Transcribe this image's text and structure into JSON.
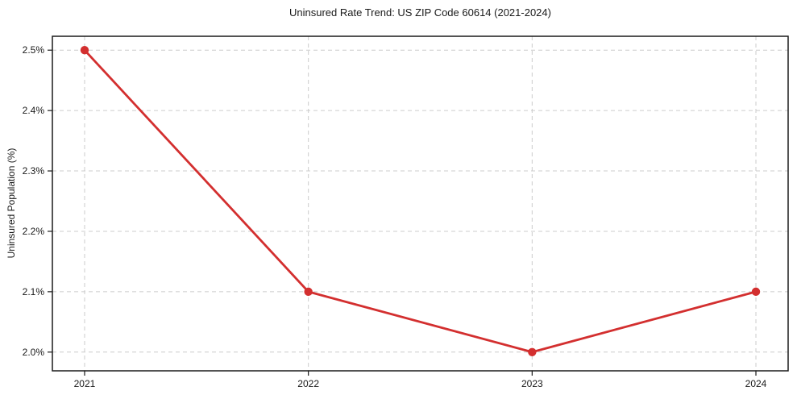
{
  "chart_data": {
    "type": "line",
    "title": "Uninsured Rate Trend: US ZIP Code 60614 (2021-2024)",
    "xlabel": "",
    "ylabel": "Uninsured Population (%)",
    "x": [
      2021,
      2022,
      2023,
      2024
    ],
    "values": [
      2.5,
      2.1,
      2.0,
      2.1
    ],
    "x_tick_labels": [
      "2021",
      "2022",
      "2023",
      "2024"
    ],
    "y_ticks": [
      2.0,
      2.1,
      2.2,
      2.3,
      2.4,
      2.5
    ],
    "y_tick_labels": [
      "2.0%",
      "2.1%",
      "2.2%",
      "2.3%",
      "2.4%",
      "2.5%"
    ],
    "xlim": [
      2020.856,
      2024.144
    ],
    "ylim": [
      1.969,
      2.523
    ],
    "grid": true,
    "grid_style": "dashed",
    "legend": false,
    "colors": {
      "line": "#d32f2f",
      "marker": "#d32f2f",
      "grid": "#cccccc",
      "axis_border": "#1a1a1a",
      "text": "#1a1a1a",
      "background": "#ffffff"
    }
  }
}
